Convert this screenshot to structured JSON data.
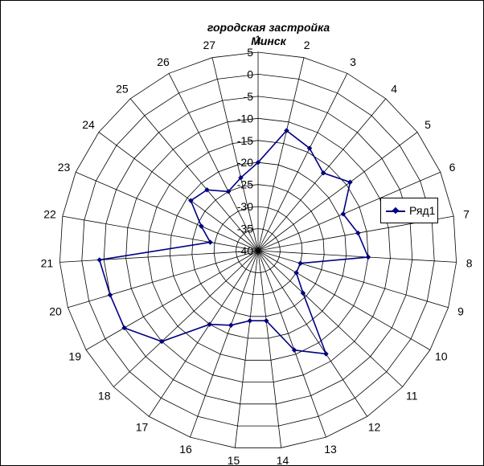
{
  "chart_data": {
    "type": "radar",
    "title": "городская застройка",
    "subtitle": "Минск",
    "categories": [
      "1",
      "2",
      "3",
      "4",
      "5",
      "6",
      "7",
      "8",
      "9",
      "10",
      "11",
      "12",
      "13",
      "14",
      "15",
      "16",
      "17",
      "18",
      "19",
      "20",
      "21",
      "22",
      "23",
      "24",
      "25",
      "26",
      "27"
    ],
    "series": [
      {
        "name": "Ряд1",
        "values": [
          -20,
          -12,
          -14,
          -17,
          -14,
          -19,
          -17,
          -15,
          -30,
          -30,
          -26,
          -12,
          -16,
          -24,
          -24,
          -22,
          -20,
          -10,
          -5,
          -5,
          -4,
          -29,
          -26,
          -21,
          -22,
          -25,
          -23
        ],
        "color": "#000080"
      }
    ],
    "rlim": [
      -40,
      5
    ],
    "ticks": [
      5,
      0,
      -5,
      -10,
      -15,
      -20,
      -25,
      -30,
      -35,
      -40
    ],
    "tick_labels": [
      "5",
      "0",
      "-5",
      "-10",
      "-15",
      "-20",
      "-25",
      "-30",
      "-35",
      "-40"
    ],
    "grid": true,
    "legend": "right"
  }
}
